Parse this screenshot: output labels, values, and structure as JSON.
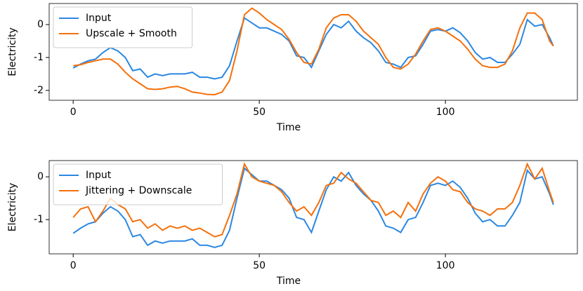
{
  "chart_data": [
    {
      "type": "line",
      "xlabel": "Time",
      "ylabel": "Electricity",
      "x": [
        0,
        2,
        4,
        6,
        8,
        10,
        12,
        14,
        16,
        18,
        20,
        22,
        24,
        26,
        28,
        30,
        32,
        34,
        36,
        38,
        40,
        42,
        44,
        46,
        48,
        50,
        52,
        54,
        56,
        58,
        60,
        62,
        64,
        66,
        68,
        70,
        72,
        74,
        76,
        78,
        80,
        82,
        84,
        86,
        88,
        90,
        92,
        94,
        96,
        98,
        100,
        102,
        104,
        106,
        108,
        110,
        112,
        114,
        116,
        118,
        120,
        122,
        124,
        126,
        128,
        129
      ],
      "series": [
        {
          "name": "Input",
          "color": "#2a88e3",
          "values": [
            -1.32,
            -1.2,
            -1.1,
            -1.05,
            -0.85,
            -0.7,
            -0.8,
            -1.0,
            -1.4,
            -1.35,
            -1.6,
            -1.5,
            -1.55,
            -1.5,
            -1.5,
            -1.5,
            -1.45,
            -1.6,
            -1.6,
            -1.65,
            -1.6,
            -1.25,
            -0.5,
            0.2,
            0.05,
            -0.1,
            -0.1,
            -0.2,
            -0.3,
            -0.5,
            -0.95,
            -1.0,
            -1.3,
            -0.8,
            -0.3,
            0.0,
            -0.1,
            0.1,
            -0.2,
            -0.4,
            -0.55,
            -0.8,
            -1.15,
            -1.2,
            -1.3,
            -1.0,
            -0.95,
            -0.6,
            -0.2,
            -0.15,
            -0.2,
            -0.1,
            -0.25,
            -0.5,
            -0.85,
            -1.05,
            -1.0,
            -1.15,
            -1.15,
            -0.9,
            -0.6,
            0.15,
            -0.05,
            0.0,
            -0.4,
            -0.65
          ]
        },
        {
          "name": "Upscale + Smooth",
          "color": "#f5700c",
          "values": [
            -1.25,
            -1.22,
            -1.15,
            -1.1,
            -1.05,
            -1.05,
            -1.2,
            -1.45,
            -1.65,
            -1.8,
            -1.95,
            -1.97,
            -1.95,
            -1.9,
            -1.88,
            -1.95,
            -2.05,
            -2.08,
            -2.12,
            -2.13,
            -2.05,
            -1.7,
            -0.8,
            0.3,
            0.5,
            0.35,
            0.15,
            0.0,
            -0.15,
            -0.45,
            -0.85,
            -1.15,
            -1.2,
            -0.75,
            -0.1,
            0.2,
            0.3,
            0.3,
            0.1,
            -0.2,
            -0.4,
            -0.6,
            -1.0,
            -1.3,
            -1.35,
            -1.2,
            -0.9,
            -0.5,
            -0.15,
            -0.1,
            -0.2,
            -0.35,
            -0.5,
            -0.75,
            -1.05,
            -1.25,
            -1.3,
            -1.3,
            -1.2,
            -0.8,
            -0.1,
            0.35,
            0.35,
            0.15,
            -0.5,
            -0.65
          ]
        }
      ],
      "xlim": [
        -6.45,
        135.45
      ],
      "xticks": [
        0,
        50,
        100
      ],
      "ylim": [
        -2.3,
        0.64
      ],
      "yticks": [
        -2,
        -1,
        0
      ],
      "legend": "upper left"
    },
    {
      "type": "line",
      "xlabel": "Time",
      "ylabel": "Electricity",
      "x": [
        0,
        2,
        4,
        6,
        8,
        10,
        12,
        14,
        16,
        18,
        20,
        22,
        24,
        26,
        28,
        30,
        32,
        34,
        36,
        38,
        40,
        42,
        44,
        46,
        48,
        50,
        52,
        54,
        56,
        58,
        60,
        62,
        64,
        66,
        68,
        70,
        72,
        74,
        76,
        78,
        80,
        82,
        84,
        86,
        88,
        90,
        92,
        94,
        96,
        98,
        100,
        102,
        104,
        106,
        108,
        110,
        112,
        114,
        116,
        118,
        120,
        122,
        124,
        126,
        128,
        129
      ],
      "series": [
        {
          "name": "Input",
          "color": "#2a88e3",
          "values": [
            -1.32,
            -1.2,
            -1.1,
            -1.05,
            -0.85,
            -0.7,
            -0.8,
            -1.0,
            -1.4,
            -1.35,
            -1.6,
            -1.5,
            -1.55,
            -1.5,
            -1.5,
            -1.5,
            -1.45,
            -1.6,
            -1.6,
            -1.65,
            -1.6,
            -1.25,
            -0.5,
            0.2,
            0.05,
            -0.1,
            -0.1,
            -0.2,
            -0.3,
            -0.5,
            -0.95,
            -1.0,
            -1.3,
            -0.8,
            -0.3,
            0.0,
            -0.1,
            0.1,
            -0.2,
            -0.4,
            -0.55,
            -0.8,
            -1.15,
            -1.2,
            -1.3,
            -1.0,
            -0.95,
            -0.6,
            -0.2,
            -0.15,
            -0.2,
            -0.1,
            -0.25,
            -0.5,
            -0.85,
            -1.05,
            -1.0,
            -1.15,
            -1.15,
            -0.9,
            -0.6,
            0.15,
            -0.05,
            0.0,
            -0.4,
            -0.65
          ]
        },
        {
          "name": "Jittering + Downscale",
          "color": "#f5700c",
          "values": [
            -0.95,
            -0.75,
            -0.7,
            -1.05,
            -0.8,
            -0.5,
            -0.65,
            -0.75,
            -1.05,
            -1.0,
            -1.2,
            -1.1,
            -1.25,
            -1.15,
            -1.2,
            -1.15,
            -1.25,
            -1.2,
            -1.3,
            -1.4,
            -1.35,
            -0.9,
            -0.4,
            0.3,
            0.0,
            -0.1,
            -0.15,
            -0.2,
            -0.35,
            -0.6,
            -0.8,
            -0.7,
            -0.9,
            -0.6,
            -0.2,
            -0.15,
            0.1,
            -0.05,
            -0.15,
            -0.35,
            -0.55,
            -0.6,
            -0.9,
            -0.8,
            -0.95,
            -0.6,
            -0.8,
            -0.4,
            -0.15,
            0.0,
            -0.1,
            -0.3,
            -0.35,
            -0.6,
            -0.75,
            -0.8,
            -0.9,
            -0.75,
            -0.75,
            -0.6,
            -0.2,
            0.3,
            -0.05,
            0.2,
            -0.35,
            -0.6
          ]
        }
      ],
      "xlim": [
        -6.45,
        135.45
      ],
      "xticks": [
        0,
        50,
        100
      ],
      "ylim": [
        -1.8,
        0.38
      ],
      "yticks": [
        -1,
        0
      ],
      "legend": "upper left"
    }
  ]
}
